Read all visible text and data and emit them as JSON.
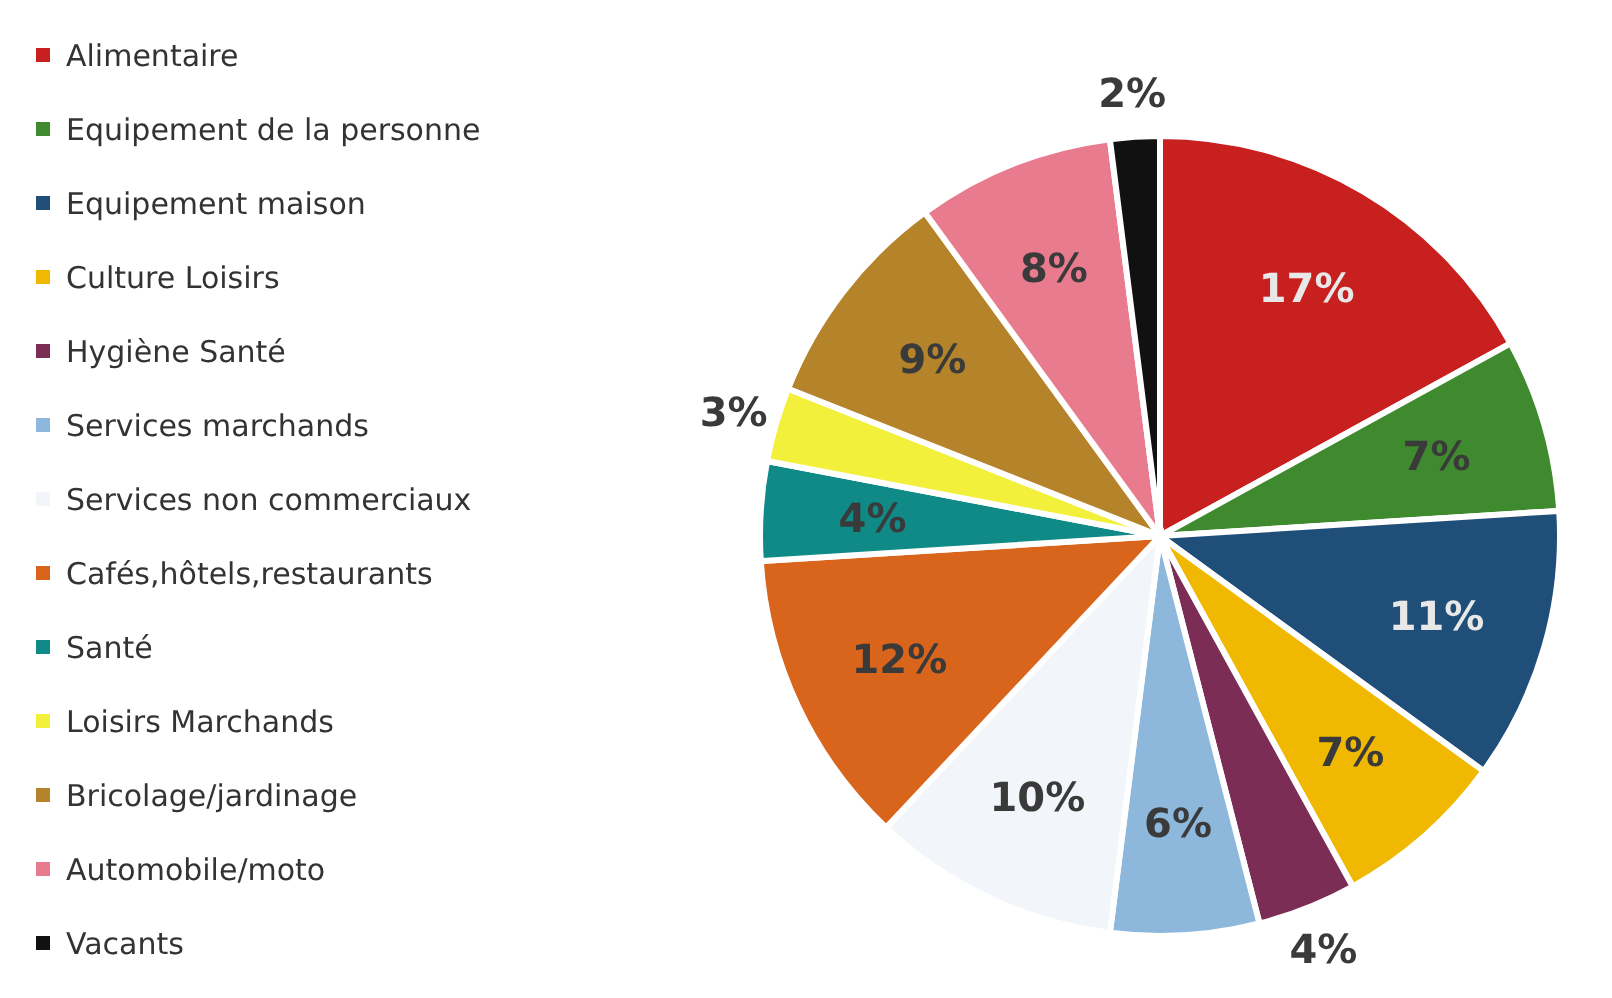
{
  "chart_data": {
    "type": "pie",
    "categories": [
      "Alimentaire",
      "Equipement de la personne",
      "Equipement maison",
      "Culture Loisirs",
      "Hygiène Santé",
      "Services marchands",
      "Services non commerciaux",
      "Cafés,hôtels,restaurants",
      "Santé",
      "Loisirs Marchands",
      "Bricolage/jardinage",
      "Automobile/moto",
      "Vacants"
    ],
    "values": [
      17,
      7,
      11,
      7,
      4,
      6,
      10,
      12,
      4,
      3,
      9,
      8,
      2
    ],
    "value_labels": [
      "17%",
      "7%",
      "11%",
      "7%",
      "4%",
      "6%",
      "10%",
      "12%",
      "4%",
      "3%",
      "9%",
      "8%",
      "2%"
    ],
    "colors": [
      "#c8201e",
      "#3f8a2e",
      "#1f4e79",
      "#f0b800",
      "#7b2d55",
      "#8db8dc",
      "#f2f5fa",
      "#d9651c",
      "#0f8a86",
      "#f3f03c",
      "#b5842a",
      "#e87b8e",
      "#111111"
    ],
    "legend": "left"
  }
}
